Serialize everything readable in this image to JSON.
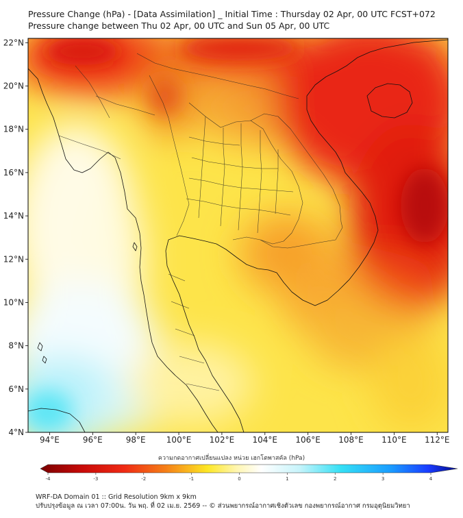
{
  "title": {
    "line1": "Pressure Change (hPa) - [Data Assimilation] _ Initial Time : Thursday 02 Apr, 00 UTC FCST+072",
    "line2": "Pressure change between Thu 02 Apr, 00 UTC and Sun 05 Apr, 00 UTC"
  },
  "map": {
    "lat_labels": [
      "22°N",
      "20°N",
      "18°N",
      "16°N",
      "14°N",
      "12°N",
      "10°N",
      "8°N",
      "6°N",
      "4°N"
    ],
    "lon_labels": [
      "94°E",
      "96°E",
      "98°E",
      "100°E",
      "102°E",
      "104°E",
      "106°E",
      "108°E",
      "110°E",
      "112°E"
    ],
    "lat_range": [
      4,
      22.2
    ],
    "lon_range": [
      93,
      112.5
    ]
  },
  "colorbar": {
    "title": "ความกดอากาศเปลี่ยนแปลง หน่วย เฮกโตพาสคัล (hPa)",
    "ticks": [
      "-4",
      "-3",
      "-2",
      "-1",
      "0",
      "1",
      "2",
      "3",
      "4"
    ],
    "range": [
      -4,
      4
    ],
    "colors": {
      "min": "#7a0000",
      "red": "#e8140e",
      "orange": "#f57f17",
      "yellow": "#fde725",
      "white": "#ffffff",
      "cyan": "#35e0f5",
      "blue": "#1a5cff",
      "max": "#000a8a"
    }
  },
  "footer": {
    "line1": "WRF-DA Domain 01 :: Grid Resolution 9km x 9km",
    "line2": "ปรับปรุงข้อมูล ณ เวลา 07:00น. วัน พฤ. ที่ 02 เม.ย. 2569 -- © ส่วนพยากรณ์อากาศเชิงตัวเลข กองพยากรณ์อากาศ กรมอุตุนิยมวิทยา"
  }
}
